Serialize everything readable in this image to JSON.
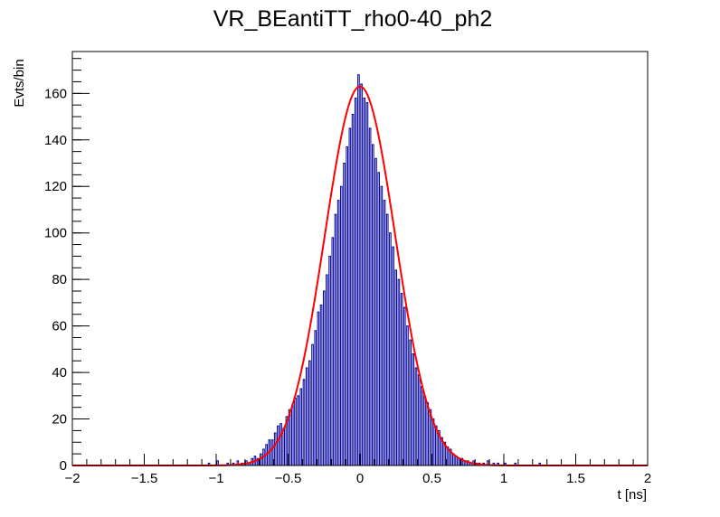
{
  "chart_data": {
    "type": "histogram",
    "title": "VR_BEantiTT_rho0-40_ph2",
    "xlabel": "t [ns]",
    "ylabel": "Evts/bin",
    "xlim": [
      -2,
      2
    ],
    "ylim": [
      0,
      178
    ],
    "x_ticks": [
      -2,
      -1.5,
      -1,
      -0.5,
      0,
      0.5,
      1,
      1.5,
      2
    ],
    "x_tick_labels": [
      "−2",
      "−1.5",
      "−1",
      "−0.5",
      "0",
      "0.5",
      "1",
      "1.5",
      "2"
    ],
    "y_ticks": [
      0,
      20,
      40,
      60,
      80,
      100,
      120,
      140,
      160
    ],
    "y_tick_labels": [
      "0",
      "20",
      "40",
      "60",
      "80",
      "100",
      "120",
      "140",
      "160"
    ],
    "grid": false,
    "series": [
      {
        "kind": "histogram",
        "color": "#000099",
        "bin_width": 0.01,
        "bins": [
          [
            -1.05,
            1
          ],
          [
            -0.99,
            2
          ],
          [
            -0.92,
            1
          ],
          [
            -0.88,
            1
          ],
          [
            -0.85,
            2
          ],
          [
            -0.82,
            1
          ],
          [
            -0.79,
            2
          ],
          [
            -0.77,
            1
          ],
          [
            -0.75,
            3
          ],
          [
            -0.73,
            4
          ],
          [
            -0.71,
            3
          ],
          [
            -0.69,
            5
          ],
          [
            -0.67,
            7
          ],
          [
            -0.65,
            9
          ],
          [
            -0.63,
            11
          ],
          [
            -0.61,
            11
          ],
          [
            -0.59,
            14
          ],
          [
            -0.57,
            17
          ],
          [
            -0.55,
            18
          ],
          [
            -0.53,
            16
          ],
          [
            -0.51,
            21
          ],
          [
            -0.49,
            24
          ],
          [
            -0.47,
            26
          ],
          [
            -0.45,
            29
          ],
          [
            -0.43,
            30
          ],
          [
            -0.41,
            33
          ],
          [
            -0.39,
            37
          ],
          [
            -0.37,
            42
          ],
          [
            -0.35,
            45
          ],
          [
            -0.33,
            52
          ],
          [
            -0.31,
            58
          ],
          [
            -0.29,
            66
          ],
          [
            -0.27,
            69
          ],
          [
            -0.25,
            75
          ],
          [
            -0.23,
            82
          ],
          [
            -0.21,
            90
          ],
          [
            -0.19,
            98
          ],
          [
            -0.17,
            108
          ],
          [
            -0.15,
            114
          ],
          [
            -0.13,
            120
          ],
          [
            -0.11,
            130
          ],
          [
            -0.09,
            137
          ],
          [
            -0.07,
            145
          ],
          [
            -0.05,
            151
          ],
          [
            -0.03,
            158
          ],
          [
            -0.01,
            168
          ],
          [
            0.01,
            164
          ],
          [
            0.03,
            158
          ],
          [
            0.05,
            156
          ],
          [
            0.07,
            145
          ],
          [
            0.09,
            138
          ],
          [
            0.11,
            132
          ],
          [
            0.13,
            126
          ],
          [
            0.15,
            120
          ],
          [
            0.17,
            114
          ],
          [
            0.19,
            108
          ],
          [
            0.21,
            100
          ],
          [
            0.23,
            94
          ],
          [
            0.25,
            84
          ],
          [
            0.27,
            80
          ],
          [
            0.29,
            74
          ],
          [
            0.31,
            68
          ],
          [
            0.33,
            60
          ],
          [
            0.35,
            54
          ],
          [
            0.37,
            48
          ],
          [
            0.39,
            42
          ],
          [
            0.41,
            39
          ],
          [
            0.43,
            34
          ],
          [
            0.45,
            30
          ],
          [
            0.47,
            27
          ],
          [
            0.49,
            24
          ],
          [
            0.51,
            20
          ],
          [
            0.53,
            17
          ],
          [
            0.55,
            15
          ],
          [
            0.57,
            12
          ],
          [
            0.59,
            10
          ],
          [
            0.61,
            8
          ],
          [
            0.63,
            7
          ],
          [
            0.65,
            5
          ],
          [
            0.67,
            4
          ],
          [
            0.69,
            3
          ],
          [
            0.71,
            3
          ],
          [
            0.73,
            2
          ],
          [
            0.75,
            2
          ],
          [
            0.77,
            1
          ],
          [
            0.79,
            2
          ],
          [
            0.81,
            1
          ],
          [
            0.83,
            1
          ],
          [
            0.86,
            1
          ],
          [
            0.89,
            2
          ],
          [
            0.93,
            1
          ],
          [
            0.96,
            1
          ],
          [
            1.01,
            1
          ],
          [
            1.08,
            1
          ],
          [
            1.25,
            1
          ]
        ]
      },
      {
        "kind": "gaussian fit",
        "color": "#ff0000",
        "amplitude": 163,
        "mean": 0.0,
        "sigma": 0.245
      }
    ]
  }
}
